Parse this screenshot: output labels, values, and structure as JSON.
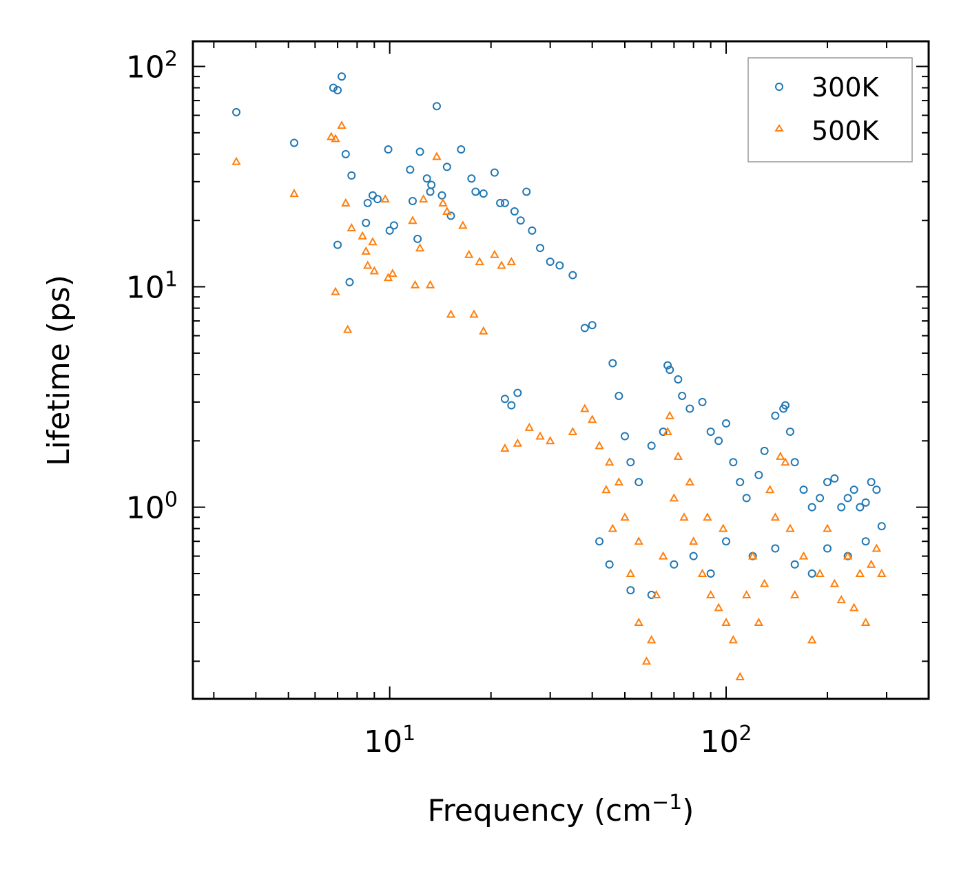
{
  "chart_data": {
    "type": "scatter",
    "xscale": "log",
    "yscale": "log",
    "xlim": [
      2.6,
      400
    ],
    "ylim": [
      0.135,
      130
    ],
    "xlabel": "Frequency (cm",
    "xlabel_sup": "−1",
    "xlabel_end": ")",
    "ylabel": "Lifetime (ps)",
    "x_ticks": [
      {
        "value": 10,
        "base": "10",
        "exp": "1"
      },
      {
        "value": 100,
        "base": "10",
        "exp": "2"
      }
    ],
    "y_ticks": [
      {
        "value": 1,
        "base": "10",
        "exp": "0"
      },
      {
        "value": 10,
        "base": "10",
        "exp": "1"
      },
      {
        "value": 100,
        "base": "10",
        "exp": "2"
      }
    ],
    "legend": {
      "position": "top-right"
    },
    "series": [
      {
        "name": "300K",
        "marker": "circle",
        "color": "#1f77b4",
        "points": [
          [
            3.5,
            62
          ],
          [
            5.2,
            45
          ],
          [
            6.8,
            80
          ],
          [
            7.0,
            78
          ],
          [
            7.2,
            90
          ],
          [
            7.4,
            40
          ],
          [
            7.7,
            32
          ],
          [
            7.0,
            15.5
          ],
          [
            7.6,
            10.5
          ],
          [
            8.5,
            19.5
          ],
          [
            8.6,
            24
          ],
          [
            8.9,
            26
          ],
          [
            9.2,
            25
          ],
          [
            9.9,
            42
          ],
          [
            10.0,
            18
          ],
          [
            10.3,
            19
          ],
          [
            11.5,
            34
          ],
          [
            11.7,
            24.5
          ],
          [
            12.1,
            16.5
          ],
          [
            12.3,
            41
          ],
          [
            12.9,
            31
          ],
          [
            13.2,
            27
          ],
          [
            13.3,
            29
          ],
          [
            13.8,
            66
          ],
          [
            14.3,
            26
          ],
          [
            14.8,
            35
          ],
          [
            15.2,
            21
          ],
          [
            16.3,
            42
          ],
          [
            17.5,
            31
          ],
          [
            18.0,
            27
          ],
          [
            19.0,
            26.5
          ],
          [
            20.5,
            33
          ],
          [
            21.3,
            24
          ],
          [
            22.0,
            24
          ],
          [
            23.5,
            22
          ],
          [
            24.5,
            20
          ],
          [
            25.5,
            27
          ],
          [
            26.5,
            18
          ],
          [
            28.0,
            15
          ],
          [
            30.0,
            13
          ],
          [
            32.0,
            12.5
          ],
          [
            35.0,
            11.3
          ],
          [
            38.0,
            6.5
          ],
          [
            40.0,
            6.7
          ],
          [
            22.0,
            3.1
          ],
          [
            23.0,
            2.9
          ],
          [
            24.0,
            3.3
          ],
          [
            46.0,
            4.5
          ],
          [
            48.0,
            3.2
          ],
          [
            50.0,
            2.1
          ],
          [
            52.0,
            1.6
          ],
          [
            55.0,
            1.3
          ],
          [
            60.0,
            1.9
          ],
          [
            65.0,
            2.2
          ],
          [
            67.0,
            4.4
          ],
          [
            68.0,
            4.2
          ],
          [
            72.0,
            3.8
          ],
          [
            74.0,
            3.2
          ],
          [
            78.0,
            2.8
          ],
          [
            85.0,
            3.0
          ],
          [
            90.0,
            2.2
          ],
          [
            95.0,
            2.0
          ],
          [
            100.0,
            2.4
          ],
          [
            105.0,
            1.6
          ],
          [
            110.0,
            1.3
          ],
          [
            115.0,
            1.1
          ],
          [
            125.0,
            1.4
          ],
          [
            130.0,
            1.8
          ],
          [
            140.0,
            2.6
          ],
          [
            148.0,
            2.8
          ],
          [
            150.0,
            2.9
          ],
          [
            155.0,
            2.2
          ],
          [
            160.0,
            1.6
          ],
          [
            170.0,
            1.2
          ],
          [
            180.0,
            1.0
          ],
          [
            190.0,
            1.1
          ],
          [
            200.0,
            1.3
          ],
          [
            210.0,
            1.35
          ],
          [
            220.0,
            1.0
          ],
          [
            230.0,
            1.1
          ],
          [
            240.0,
            1.2
          ],
          [
            250.0,
            1.0
          ],
          [
            260.0,
            1.05
          ],
          [
            270.0,
            1.3
          ],
          [
            280.0,
            1.2
          ],
          [
            290.0,
            0.82
          ],
          [
            42.0,
            0.7
          ],
          [
            45.0,
            0.55
          ],
          [
            52.0,
            0.42
          ],
          [
            60.0,
            0.4
          ],
          [
            70.0,
            0.55
          ],
          [
            80.0,
            0.6
          ],
          [
            90.0,
            0.5
          ],
          [
            100.0,
            0.7
          ],
          [
            120.0,
            0.6
          ],
          [
            140.0,
            0.65
          ],
          [
            160.0,
            0.55
          ],
          [
            180.0,
            0.5
          ],
          [
            200.0,
            0.65
          ],
          [
            230.0,
            0.6
          ],
          [
            260.0,
            0.7
          ]
        ]
      },
      {
        "name": "500K",
        "marker": "triangle",
        "color": "#ff7f0e",
        "points": [
          [
            3.5,
            37
          ],
          [
            5.2,
            26.5
          ],
          [
            6.7,
            48
          ],
          [
            6.9,
            47
          ],
          [
            7.2,
            54
          ],
          [
            7.4,
            24
          ],
          [
            7.7,
            18.5
          ],
          [
            6.9,
            9.5
          ],
          [
            7.5,
            6.4
          ],
          [
            8.3,
            17
          ],
          [
            8.5,
            14.5
          ],
          [
            8.6,
            12.5
          ],
          [
            8.9,
            16
          ],
          [
            9.0,
            11.8
          ],
          [
            9.7,
            25
          ],
          [
            9.9,
            11
          ],
          [
            10.2,
            11.5
          ],
          [
            11.7,
            20
          ],
          [
            11.9,
            10.2
          ],
          [
            12.3,
            15
          ],
          [
            12.6,
            25
          ],
          [
            13.2,
            10.2
          ],
          [
            13.8,
            39
          ],
          [
            14.4,
            24
          ],
          [
            14.8,
            22
          ],
          [
            15.2,
            7.5
          ],
          [
            16.5,
            19
          ],
          [
            17.2,
            14
          ],
          [
            17.8,
            7.5
          ],
          [
            18.5,
            13
          ],
          [
            19.0,
            6.3
          ],
          [
            20.5,
            14
          ],
          [
            21.5,
            12.5
          ],
          [
            23.0,
            13
          ],
          [
            22.0,
            1.85
          ],
          [
            24.0,
            1.95
          ],
          [
            26.0,
            2.3
          ],
          [
            28.0,
            2.1
          ],
          [
            30.0,
            2.0
          ],
          [
            35.0,
            2.2
          ],
          [
            40.0,
            2.5
          ],
          [
            45.0,
            1.6
          ],
          [
            48.0,
            1.3
          ],
          [
            50.0,
            0.9
          ],
          [
            52.0,
            0.5
          ],
          [
            55.0,
            0.3
          ],
          [
            58.0,
            0.2
          ],
          [
            60.0,
            0.25
          ],
          [
            62.0,
            0.4
          ],
          [
            65.0,
            0.6
          ],
          [
            67.0,
            2.2
          ],
          [
            68.0,
            2.6
          ],
          [
            72.0,
            1.7
          ],
          [
            75.0,
            0.9
          ],
          [
            80.0,
            0.7
          ],
          [
            85.0,
            0.5
          ],
          [
            90.0,
            0.4
          ],
          [
            95.0,
            0.35
          ],
          [
            100.0,
            0.3
          ],
          [
            105.0,
            0.25
          ],
          [
            110.0,
            0.17
          ],
          [
            115.0,
            0.4
          ],
          [
            120.0,
            0.6
          ],
          [
            125.0,
            0.3
          ],
          [
            130.0,
            0.45
          ],
          [
            140.0,
            0.9
          ],
          [
            145.0,
            1.7
          ],
          [
            150.0,
            1.6
          ],
          [
            155.0,
            0.8
          ],
          [
            160.0,
            0.4
          ],
          [
            170.0,
            0.6
          ],
          [
            180.0,
            0.25
          ],
          [
            190.0,
            0.5
          ],
          [
            200.0,
            0.8
          ],
          [
            210.0,
            0.45
          ],
          [
            220.0,
            0.38
          ],
          [
            230.0,
            0.6
          ],
          [
            240.0,
            0.35
          ],
          [
            250.0,
            0.5
          ],
          [
            260.0,
            0.3
          ],
          [
            270.0,
            0.55
          ],
          [
            280.0,
            0.65
          ],
          [
            290.0,
            0.5
          ],
          [
            38.0,
            2.8
          ],
          [
            42.0,
            1.9
          ],
          [
            44.0,
            1.2
          ],
          [
            46.0,
            0.8
          ],
          [
            55.0,
            0.7
          ],
          [
            70.0,
            1.1
          ],
          [
            78.0,
            1.3
          ],
          [
            88.0,
            0.9
          ],
          [
            98.0,
            0.8
          ],
          [
            135.0,
            1.2
          ]
        ]
      }
    ]
  }
}
